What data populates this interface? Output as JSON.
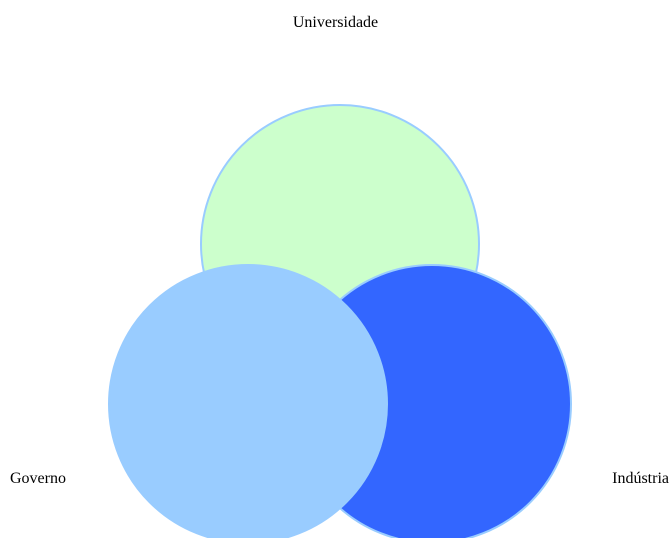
{
  "diagram": {
    "type": "venn",
    "sets": [
      {
        "label": "Universidade",
        "color": "#ccffcc",
        "stroke": "#99ccff"
      },
      {
        "label": "Governo",
        "color": "#99ccff",
        "stroke": "#99ccff"
      },
      {
        "label": "Indústria",
        "color": "#3366ff",
        "stroke": "#99ccff"
      }
    ]
  }
}
